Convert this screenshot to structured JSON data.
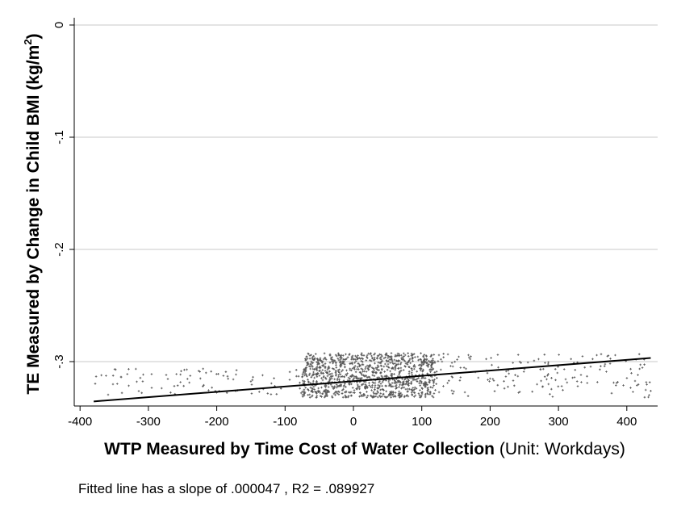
{
  "chart_data": {
    "type": "scatter",
    "title": "",
    "xlabel_bold": "WTP Measured by Time Cost of Water Collection",
    "xlabel_unit": "(Unit: Workdays)",
    "ylabel": "TE Measured by Change in Child BMI (kg/m",
    "ylabel_sup": "2",
    "ylabel_close": ")",
    "xlim": [
      -400,
      440
    ],
    "ylim": [
      -0.34,
      0.005
    ],
    "x_ticks": [
      -400,
      -300,
      -200,
      -100,
      0,
      100,
      200,
      300,
      400
    ],
    "x_tick_labels": [
      "-400",
      "-300",
      "-200",
      "-100",
      "0",
      "100",
      "200",
      "300",
      "400"
    ],
    "y_ticks": [
      0,
      -0.1,
      -0.2,
      -0.3
    ],
    "y_tick_labels": [
      "0",
      "-.1",
      "-.2",
      "-.3"
    ],
    "grid": "horizontal",
    "legend": "none",
    "fit_line": {
      "x": [
        -380,
        435
      ],
      "y": [
        -0.3355,
        -0.2968
      ]
    },
    "scatter_summary": {
      "dense_x_range": [
        -75,
        120
      ],
      "y_range": [
        -0.332,
        -0.2925
      ],
      "marker": "small cross"
    },
    "annotation": "Fitted line has a slope of .000047 , R2 = .089927",
    "colors": {
      "points": "#555555",
      "fit_line": "#000000",
      "grid": "#c8c8c8",
      "axis": "#000000"
    }
  }
}
